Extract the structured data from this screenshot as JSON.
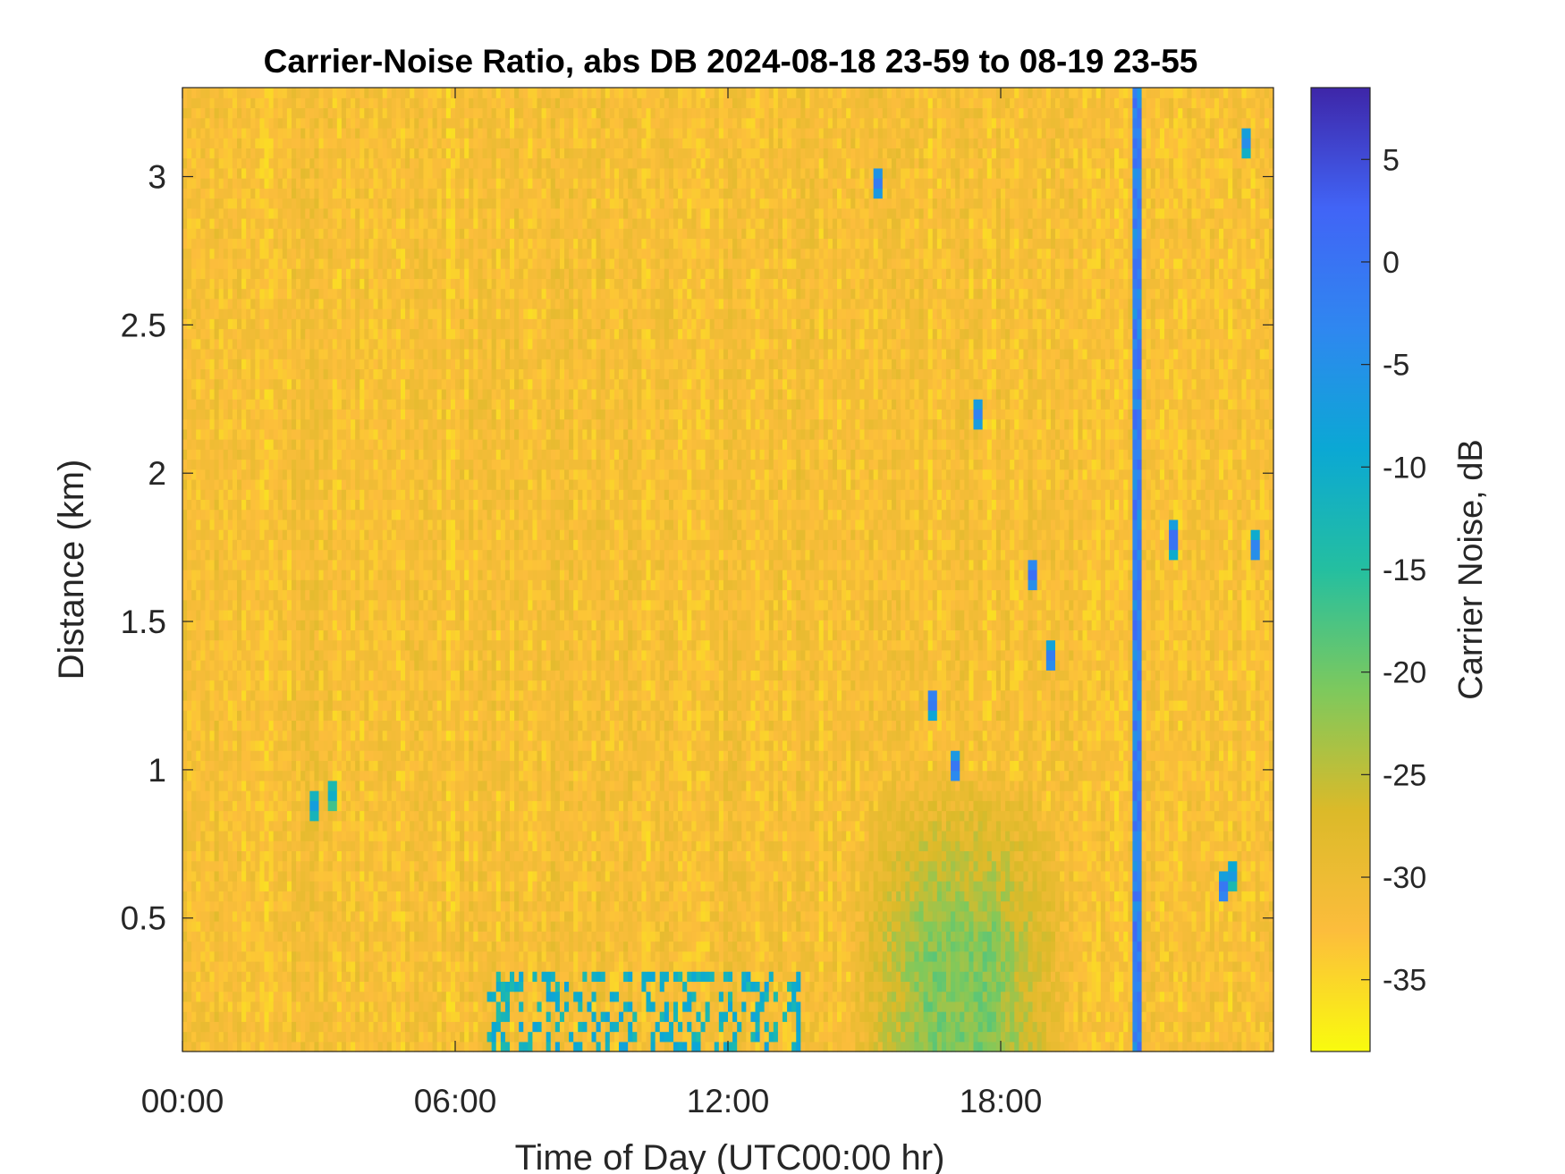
{
  "chart_data": {
    "type": "heatmap",
    "title": "Carrier-Noise Ratio, abs DB 2024-08-18 23-59 to 08-19 23-55",
    "xlabel": "Time of Day (UTC00:00 hr)",
    "ylabel": "Distance (km)",
    "colorbar_label": "Carrier Noise, dB",
    "x_unit": "hours UTC",
    "xlim": [
      0,
      24
    ],
    "ylim": [
      0.05,
      3.3
    ],
    "clim": [
      -38.5,
      8.5
    ],
    "x_ticks": [
      {
        "value": 0,
        "label": "00:00"
      },
      {
        "value": 6,
        "label": "06:00"
      },
      {
        "value": 12,
        "label": "12:00"
      },
      {
        "value": 18,
        "label": "18:00"
      }
    ],
    "y_ticks": [
      {
        "value": 0.5,
        "label": "0.5"
      },
      {
        "value": 1,
        "label": "1"
      },
      {
        "value": 1.5,
        "label": "1.5"
      },
      {
        "value": 2,
        "label": "2"
      },
      {
        "value": 2.5,
        "label": "2.5"
      },
      {
        "value": 3,
        "label": "3"
      }
    ],
    "colorbar_ticks": [
      {
        "value": 5,
        "label": "5"
      },
      {
        "value": 0,
        "label": "0"
      },
      {
        "value": -5,
        "label": "-5"
      },
      {
        "value": -10,
        "label": "-10"
      },
      {
        "value": -15,
        "label": "-15"
      },
      {
        "value": -20,
        "label": "-20"
      },
      {
        "value": -25,
        "label": "-25"
      },
      {
        "value": -30,
        "label": "-30"
      },
      {
        "value": -35,
        "label": "-35"
      }
    ],
    "colormap": "parula_reversed",
    "colormap_stops": [
      "#f9fb0e",
      "#fcbd3c",
      "#dbba29",
      "#7dc95d",
      "#24bfa0",
      "#0ba8d4",
      "#2f87f0",
      "#4164f6",
      "#3e26a8"
    ],
    "background_value_db": -32,
    "features": [
      {
        "kind": "surface_clutter",
        "x_start": 6.7,
        "x_end": 13.6,
        "y_start": 0.05,
        "y_end": 0.32,
        "value_db": -8
      },
      {
        "kind": "near_range_enhancement",
        "x_start": 14.6,
        "x_end": 19.6,
        "y_start": 0.05,
        "y_end": 1.05,
        "value_db": -21
      },
      {
        "kind": "persistent_hard_target",
        "x_start": 20.9,
        "x_end": 21.05,
        "y_start": 0.05,
        "y_end": 3.3,
        "value_db": 2
      },
      {
        "kind": "point_target",
        "x": 15.3,
        "y": 2.98,
        "value_db": 1
      },
      {
        "kind": "point_target",
        "x": 17.0,
        "y": 1.01,
        "value_db": 2
      },
      {
        "kind": "point_target",
        "x": 17.5,
        "y": 2.2,
        "value_db": 0
      },
      {
        "kind": "point_target",
        "x": 16.5,
        "y": 1.23,
        "value_db": 2
      },
      {
        "kind": "point_target",
        "x": 18.7,
        "y": 1.66,
        "value_db": 3
      },
      {
        "kind": "point_target",
        "x": 19.1,
        "y": 1.38,
        "value_db": 1
      },
      {
        "kind": "point_target",
        "x": 21.8,
        "y": 1.78,
        "value_db": 4
      },
      {
        "kind": "point_target",
        "x": 23.6,
        "y": 1.75,
        "value_db": 0
      },
      {
        "kind": "point_target",
        "x": 23.4,
        "y": 3.12,
        "value_db": -2
      },
      {
        "kind": "point_target",
        "x": 23.1,
        "y": 0.65,
        "value_db": -4
      },
      {
        "kind": "point_target",
        "x": 22.9,
        "y": 0.6,
        "value_db": 2
      },
      {
        "kind": "point_target",
        "x": 3.3,
        "y": 0.92,
        "value_db": -8
      },
      {
        "kind": "point_target",
        "x": 2.9,
        "y": 0.88,
        "value_db": -5
      }
    ]
  }
}
